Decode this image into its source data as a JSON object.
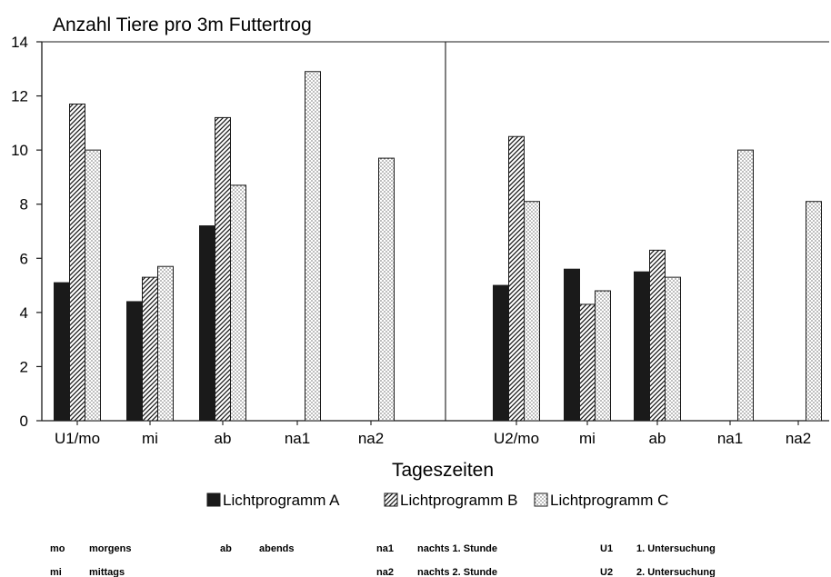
{
  "chart_data": {
    "type": "bar",
    "title": "Anzahl Tiere pro 3m Futtertrog",
    "xlabel": "Tageszeiten",
    "ylabel": "",
    "ylim": [
      0,
      14
    ],
    "yticks": [
      0,
      2,
      4,
      6,
      8,
      10,
      12,
      14
    ],
    "grid": false,
    "legend_position": "bottom",
    "categories": [
      "U1/mo",
      "mi",
      "ab",
      "na1",
      "na2",
      "U2/mo",
      "mi",
      "ab",
      "na1",
      "na2"
    ],
    "series": [
      {
        "name": "Lichtprogramm A",
        "pattern": "solid",
        "values": [
          5.1,
          4.4,
          7.2,
          null,
          null,
          5.0,
          5.6,
          5.5,
          null,
          null
        ]
      },
      {
        "name": "Lichtprogramm B",
        "pattern": "hatch",
        "values": [
          11.7,
          5.3,
          11.2,
          null,
          null,
          10.5,
          4.3,
          6.3,
          null,
          null
        ]
      },
      {
        "name": "Lichtprogramm C",
        "pattern": "dotted",
        "values": [
          10.0,
          5.7,
          8.7,
          12.9,
          9.7,
          8.1,
          4.8,
          5.3,
          10.0,
          8.1
        ]
      }
    ],
    "colors": {
      "ink": "#1a1a1a",
      "background": "#ffffff"
    }
  },
  "footnotes": [
    {
      "abbr": "mo",
      "text": "morgens"
    },
    {
      "abbr": "mi",
      "text": "mittags"
    },
    {
      "abbr": "ab",
      "text": "abends"
    },
    {
      "abbr": "na1",
      "text": "nachts 1. Stunde"
    },
    {
      "abbr": "na2",
      "text": "nachts 2. Stunde"
    },
    {
      "abbr": "U1",
      "text": "1. Untersuchung"
    },
    {
      "abbr": "U2",
      "text": "2. Untersuchung"
    }
  ]
}
